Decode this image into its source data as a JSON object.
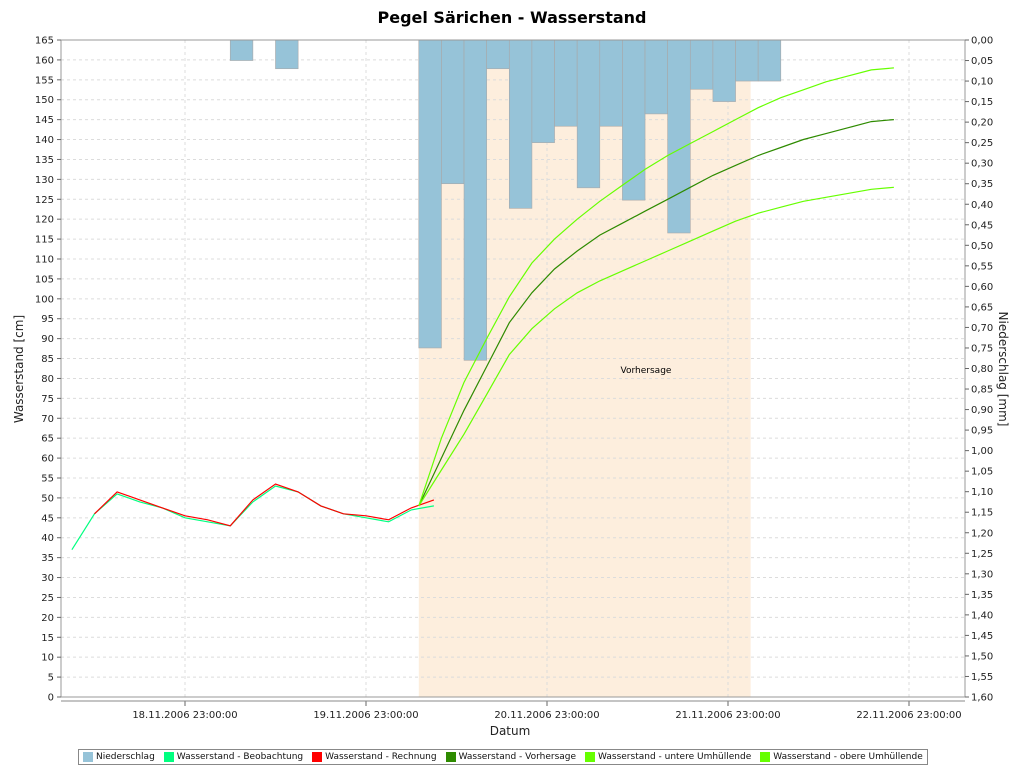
{
  "chart_data": {
    "type": "line",
    "title": "Pegel Särichen - Wasserstand",
    "xlabel": "Datum",
    "ylabel_left": "Wasserstand [cm]",
    "ylabel_right": "Niederschlag [mm]",
    "x_ticks": [
      "18.11.2006 23:00:00",
      "19.11.2006 23:00:00",
      "20.11.2006 23:00:00",
      "21.11.2006 23:00:00",
      "22.11.2006 23:00:00"
    ],
    "y_left_range": [
      0,
      165
    ],
    "y_left_step": 5,
    "y_right_range": [
      0.0,
      1.6
    ],
    "y_right_step": 0.05,
    "y_right_inverted": true,
    "grid": true,
    "legend_position": "bottom",
    "forecast_region": {
      "start": "20.11.2006 06:00",
      "end": "22.11.2006 02:00",
      "label": "Vorhersage",
      "color": "#fdeedd"
    },
    "colors": {
      "niederschlag": "#96c3d8",
      "beobachtung": "#00ff80",
      "rechnung": "#ff0000",
      "vorhersage": "#2e8b00",
      "untere": "#66ff00",
      "obere": "#66ff00"
    },
    "series": [
      {
        "name": "Niederschlag",
        "kind": "bar",
        "axis": "right",
        "interval_hours": 3,
        "points": [
          {
            "x": "19.11.2006 05:00",
            "y": 0.05
          },
          {
            "x": "19.11.2006 11:00",
            "y": 0.07
          },
          {
            "x": "20.11.2006 06:00",
            "y": 0.75
          },
          {
            "x": "20.11.2006 09:00",
            "y": 0.35
          },
          {
            "x": "20.11.2006 12:00",
            "y": 0.78
          },
          {
            "x": "20.11.2006 15:00",
            "y": 0.07
          },
          {
            "x": "20.11.2006 18:00",
            "y": 0.41
          },
          {
            "x": "20.11.2006 21:00",
            "y": 0.25
          },
          {
            "x": "21.11.2006 00:00",
            "y": 0.21
          },
          {
            "x": "21.11.2006 03:00",
            "y": 0.36
          },
          {
            "x": "21.11.2006 06:00",
            "y": 0.21
          },
          {
            "x": "21.11.2006 09:00",
            "y": 0.39
          },
          {
            "x": "21.11.2006 12:00",
            "y": 0.18
          },
          {
            "x": "21.11.2006 15:00",
            "y": 0.47
          },
          {
            "x": "21.11.2006 18:00",
            "y": 0.12
          },
          {
            "x": "21.11.2006 21:00",
            "y": 0.15
          },
          {
            "x": "22.11.2006 00:00",
            "y": 0.1
          },
          {
            "x": "22.11.2006 03:00",
            "y": 0.1
          }
        ]
      },
      {
        "name": "Wasserstand - Beobachtung",
        "kind": "line",
        "axis": "left",
        "points": [
          {
            "x": "18.11.2006 08:00",
            "y": 37
          },
          {
            "x": "18.11.2006 11:00",
            "y": 46
          },
          {
            "x": "18.11.2006 14:00",
            "y": 51
          },
          {
            "x": "18.11.2006 17:00",
            "y": 49
          },
          {
            "x": "18.11.2006 20:00",
            "y": 47.5
          },
          {
            "x": "18.11.2006 23:00",
            "y": 45
          },
          {
            "x": "19.11.2006 02:00",
            "y": 44
          },
          {
            "x": "19.11.2006 05:00",
            "y": 43
          },
          {
            "x": "19.11.2006 08:00",
            "y": 49
          },
          {
            "x": "19.11.2006 11:00",
            "y": 53
          },
          {
            "x": "19.11.2006 14:00",
            "y": 51.5
          },
          {
            "x": "19.11.2006 17:00",
            "y": 48
          },
          {
            "x": "19.11.2006 20:00",
            "y": 46
          },
          {
            "x": "19.11.2006 23:00",
            "y": 45
          },
          {
            "x": "20.11.2006 02:00",
            "y": 44
          },
          {
            "x": "20.11.2006 05:00",
            "y": 47
          },
          {
            "x": "20.11.2006 08:00",
            "y": 48
          }
        ]
      },
      {
        "name": "Wasserstand - Rechnung",
        "kind": "line",
        "axis": "left",
        "points": [
          {
            "x": "18.11.2006 11:00",
            "y": 46
          },
          {
            "x": "18.11.2006 14:00",
            "y": 51.5
          },
          {
            "x": "18.11.2006 17:00",
            "y": 49.5
          },
          {
            "x": "18.11.2006 20:00",
            "y": 47.5
          },
          {
            "x": "18.11.2006 23:00",
            "y": 45.5
          },
          {
            "x": "19.11.2006 02:00",
            "y": 44.5
          },
          {
            "x": "19.11.2006 05:00",
            "y": 43
          },
          {
            "x": "19.11.2006 08:00",
            "y": 49.5
          },
          {
            "x": "19.11.2006 11:00",
            "y": 53.5
          },
          {
            "x": "19.11.2006 14:00",
            "y": 51.5
          },
          {
            "x": "19.11.2006 17:00",
            "y": 48
          },
          {
            "x": "19.11.2006 20:00",
            "y": 46
          },
          {
            "x": "19.11.2006 23:00",
            "y": 45.5
          },
          {
            "x": "20.11.2006 02:00",
            "y": 44.5
          },
          {
            "x": "20.11.2006 05:00",
            "y": 47.5
          },
          {
            "x": "20.11.2006 08:00",
            "y": 49.5
          }
        ]
      },
      {
        "name": "Wasserstand - Vorhersage",
        "kind": "line",
        "axis": "left",
        "points": [
          {
            "x": "20.11.2006 06:00",
            "y": 48
          },
          {
            "x": "20.11.2006 09:00",
            "y": 60
          },
          {
            "x": "20.11.2006 12:00",
            "y": 72
          },
          {
            "x": "20.11.2006 15:00",
            "y": 83
          },
          {
            "x": "20.11.2006 18:00",
            "y": 94
          },
          {
            "x": "20.11.2006 21:00",
            "y": 101.5
          },
          {
            "x": "21.11.2006 00:00",
            "y": 107.5
          },
          {
            "x": "21.11.2006 03:00",
            "y": 112
          },
          {
            "x": "21.11.2006 06:00",
            "y": 116
          },
          {
            "x": "21.11.2006 09:00",
            "y": 119
          },
          {
            "x": "21.11.2006 12:00",
            "y": 122
          },
          {
            "x": "21.11.2006 15:00",
            "y": 125
          },
          {
            "x": "21.11.2006 18:00",
            "y": 128
          },
          {
            "x": "21.11.2006 21:00",
            "y": 131
          },
          {
            "x": "22.11.2006 00:00",
            "y": 133.5
          },
          {
            "x": "22.11.2006 03:00",
            "y": 136
          },
          {
            "x": "22.11.2006 06:00",
            "y": 138
          },
          {
            "x": "22.11.2006 09:00",
            "y": 140
          },
          {
            "x": "22.11.2006 12:00",
            "y": 141.5
          },
          {
            "x": "22.11.2006 15:00",
            "y": 143
          },
          {
            "x": "22.11.2006 18:00",
            "y": 144.5
          },
          {
            "x": "22.11.2006 21:00",
            "y": 145
          }
        ]
      },
      {
        "name": "Wasserstand - untere Umhüllende",
        "kind": "line",
        "axis": "left",
        "points": [
          {
            "x": "20.11.2006 06:00",
            "y": 48
          },
          {
            "x": "20.11.2006 09:00",
            "y": 57
          },
          {
            "x": "20.11.2006 12:00",
            "y": 66
          },
          {
            "x": "20.11.2006 15:00",
            "y": 76
          },
          {
            "x": "20.11.2006 18:00",
            "y": 86
          },
          {
            "x": "20.11.2006 21:00",
            "y": 92.5
          },
          {
            "x": "21.11.2006 00:00",
            "y": 97.5
          },
          {
            "x": "21.11.2006 03:00",
            "y": 101.5
          },
          {
            "x": "21.11.2006 06:00",
            "y": 104.5
          },
          {
            "x": "21.11.2006 09:00",
            "y": 107
          },
          {
            "x": "21.11.2006 12:00",
            "y": 109.5
          },
          {
            "x": "21.11.2006 15:00",
            "y": 112
          },
          {
            "x": "21.11.2006 18:00",
            "y": 114.5
          },
          {
            "x": "21.11.2006 21:00",
            "y": 117
          },
          {
            "x": "22.11.2006 00:00",
            "y": 119.5
          },
          {
            "x": "22.11.2006 03:00",
            "y": 121.5
          },
          {
            "x": "22.11.2006 06:00",
            "y": 123
          },
          {
            "x": "22.11.2006 09:00",
            "y": 124.5
          },
          {
            "x": "22.11.2006 12:00",
            "y": 125.5
          },
          {
            "x": "22.11.2006 15:00",
            "y": 126.5
          },
          {
            "x": "22.11.2006 18:00",
            "y": 127.5
          },
          {
            "x": "22.11.2006 21:00",
            "y": 128
          }
        ]
      },
      {
        "name": "Wasserstand - obere Umhüllende",
        "kind": "line",
        "axis": "left",
        "points": [
          {
            "x": "20.11.2006 06:00",
            "y": 48
          },
          {
            "x": "20.11.2006 09:00",
            "y": 65
          },
          {
            "x": "20.11.2006 12:00",
            "y": 79
          },
          {
            "x": "20.11.2006 15:00",
            "y": 90
          },
          {
            "x": "20.11.2006 18:00",
            "y": 100.5
          },
          {
            "x": "20.11.2006 21:00",
            "y": 109
          },
          {
            "x": "21.11.2006 00:00",
            "y": 115
          },
          {
            "x": "21.11.2006 03:00",
            "y": 120
          },
          {
            "x": "21.11.2006 06:00",
            "y": 124.5
          },
          {
            "x": "21.11.2006 09:00",
            "y": 128.5
          },
          {
            "x": "21.11.2006 12:00",
            "y": 132.5
          },
          {
            "x": "21.11.2006 15:00",
            "y": 136
          },
          {
            "x": "21.11.2006 18:00",
            "y": 139
          },
          {
            "x": "21.11.2006 21:00",
            "y": 142
          },
          {
            "x": "22.11.2006 00:00",
            "y": 145
          },
          {
            "x": "22.11.2006 03:00",
            "y": 148
          },
          {
            "x": "22.11.2006 06:00",
            "y": 150.5
          },
          {
            "x": "22.11.2006 09:00",
            "y": 152.5
          },
          {
            "x": "22.11.2006 12:00",
            "y": 154.5
          },
          {
            "x": "22.11.2006 15:00",
            "y": 156
          },
          {
            "x": "22.11.2006 18:00",
            "y": 157.5
          },
          {
            "x": "22.11.2006 21:00",
            "y": 158
          }
        ]
      }
    ]
  }
}
